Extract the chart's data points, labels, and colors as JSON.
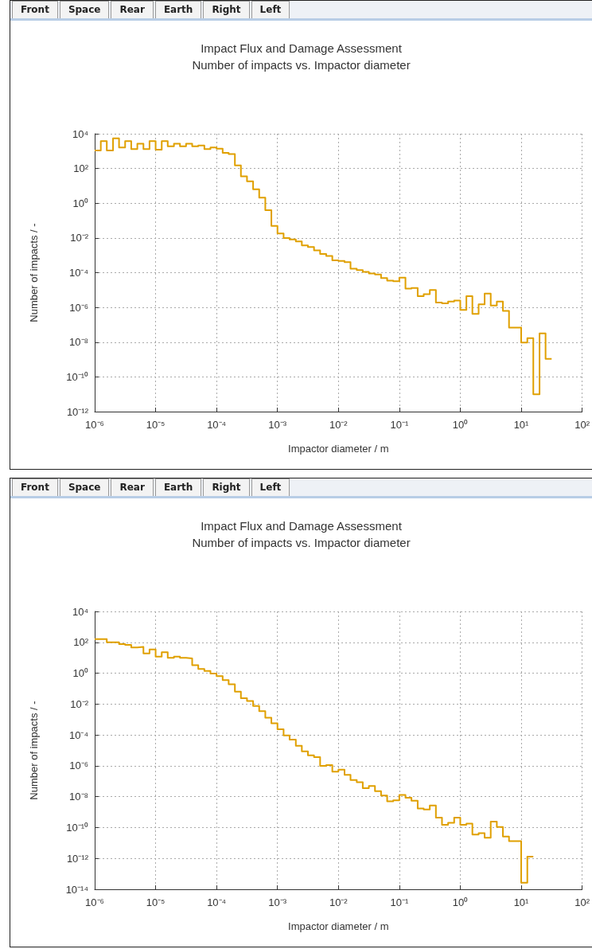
{
  "chart_data": [
    {
      "type": "histogram",
      "title": "Impact Flux and Damage Assessment",
      "subtitle": "Number of impacts vs. Impactor diameter",
      "xlabel": "Impactor diameter / m",
      "ylabel": "Number of impacts / -",
      "annotations": [
        "Front",
        "Space",
        "Rear",
        "Earth",
        "Right",
        "Left"
      ],
      "color": "#e0a000",
      "log": "xy",
      "grid": true,
      "xlim": [
        1e-06,
        100
      ],
      "ylim": [
        1e-12,
        10000.0
      ],
      "xticks": [
        {
          "value": 1e-06,
          "label": "10⁻⁶"
        },
        {
          "value": 1e-05,
          "label": "10⁻⁵"
        },
        {
          "value": 0.0001,
          "label": "10⁻⁴"
        },
        {
          "value": 0.001,
          "label": "10⁻³"
        },
        {
          "value": 0.01,
          "label": "10⁻²"
        },
        {
          "value": 0.1,
          "label": "10⁻¹"
        },
        {
          "value": 1,
          "label": "10⁰"
        },
        {
          "value": 10,
          "label": "10¹"
        },
        {
          "value": 100,
          "label": "10²"
        }
      ],
      "yticks": [
        {
          "value": 1e-12,
          "label": "10⁻¹²"
        },
        {
          "value": 1e-10,
          "label": "10⁻¹⁰"
        },
        {
          "value": 1e-08,
          "label": "10⁻⁸"
        },
        {
          "value": 1e-06,
          "label": "10⁻⁶"
        },
        {
          "value": 0.0001,
          "label": "10⁻⁴"
        },
        {
          "value": 0.01,
          "label": "10⁻²"
        },
        {
          "value": 1,
          "label": "10⁰"
        },
        {
          "value": 100,
          "label": "10²"
        },
        {
          "value": 10000.0,
          "label": "10⁴"
        }
      ],
      "bins": [
        1e-06,
        1.26e-06,
        1.58e-06,
        2e-06,
        2.51e-06,
        3.16e-06,
        3.98e-06,
        5.01e-06,
        6.31e-06,
        7.94e-06,
        1e-05,
        1.26e-05,
        1.58e-05,
        2e-05,
        2.51e-05,
        3.16e-05,
        3.98e-05,
        5.01e-05,
        6.31e-05,
        7.94e-05,
        0.0001,
        0.000126,
        0.000158,
        0.0002,
        0.000251,
        0.000316,
        0.000398,
        0.000501,
        0.000631,
        0.000794,
        0.001,
        0.00126,
        0.00158,
        0.002,
        0.00251,
        0.00316,
        0.00398,
        0.00501,
        0.00631,
        0.00794,
        0.01,
        0.0126,
        0.0158,
        0.02,
        0.0251,
        0.0316,
        0.0398,
        0.0501,
        0.0631,
        0.0794,
        0.1,
        0.126,
        0.158,
        0.2,
        0.251,
        0.316,
        0.398,
        0.501,
        0.631,
        0.794,
        1,
        1.26,
        1.58,
        2,
        2.51,
        3.16,
        3.98,
        5.01,
        6.31,
        7.94,
        10,
        12.6,
        15.8,
        20,
        25.1,
        31.6
      ],
      "values": [
        1100,
        3800,
        1100,
        5400,
        1600,
        3800,
        1300,
        2700,
        1300,
        3800,
        1200,
        3800,
        1900,
        2700,
        1900,
        2700,
        1900,
        2100,
        1300,
        1600,
        1400,
        790,
        680,
        150,
        35,
        18,
        6.3,
        2.1,
        0.4,
        0.05,
        0.018,
        0.01,
        0.0083,
        0.0063,
        0.0037,
        0.003,
        0.0019,
        0.0012,
        0.00093,
        0.00051,
        0.00047,
        0.0004,
        0.00017,
        0.00014,
        0.00011,
        8.9e-05,
        7.8e-05,
        4.9e-05,
        3.5e-05,
        3.2e-05,
        5.2e-05,
        1.2e-05,
        1.3e-05,
        4.4e-06,
        5.8e-06,
        1e-05,
        1.9e-06,
        1.7e-06,
        2.2e-06,
        2.5e-06,
        7.1e-07,
        4.4e-06,
        4.2e-07,
        1.5e-06,
        6.2e-06,
        1.3e-06,
        2.2e-06,
        6.3e-07,
        6.9e-08,
        6.9e-08,
        9.5e-09,
        1.7e-08,
        1e-11,
        3.2e-08,
        1.1e-09
      ]
    },
    {
      "type": "histogram",
      "title": "Impact Flux and Damage Assessment",
      "subtitle": "Number of impacts vs. Impactor diameter",
      "xlabel": "Impactor diameter / m",
      "ylabel": "Number of impacts / -",
      "annotations": [
        "Front",
        "Space",
        "Rear",
        "Earth",
        "Right",
        "Left"
      ],
      "color": "#e0a000",
      "log": "xy",
      "grid": true,
      "xlim": [
        1e-06,
        100
      ],
      "ylim": [
        1e-14,
        10000.0
      ],
      "xticks": [
        {
          "value": 1e-06,
          "label": "10⁻⁶"
        },
        {
          "value": 1e-05,
          "label": "10⁻⁵"
        },
        {
          "value": 0.0001,
          "label": "10⁻⁴"
        },
        {
          "value": 0.001,
          "label": "10⁻³"
        },
        {
          "value": 0.01,
          "label": "10⁻²"
        },
        {
          "value": 0.1,
          "label": "10⁻¹"
        },
        {
          "value": 1,
          "label": "10⁰"
        },
        {
          "value": 10,
          "label": "10¹"
        },
        {
          "value": 100,
          "label": "10²"
        }
      ],
      "yticks": [
        {
          "value": 1e-14,
          "label": "10⁻¹⁴"
        },
        {
          "value": 1e-12,
          "label": "10⁻¹²"
        },
        {
          "value": 1e-10,
          "label": "10⁻¹⁰"
        },
        {
          "value": 1e-08,
          "label": "10⁻⁸"
        },
        {
          "value": 1e-06,
          "label": "10⁻⁶"
        },
        {
          "value": 0.0001,
          "label": "10⁻⁴"
        },
        {
          "value": 0.01,
          "label": "10⁻²"
        },
        {
          "value": 1,
          "label": "10⁰"
        },
        {
          "value": 100,
          "label": "10²"
        },
        {
          "value": 10000.0,
          "label": "10⁴"
        }
      ],
      "bins": [
        1e-06,
        1.26e-06,
        1.58e-06,
        2e-06,
        2.51e-06,
        3.16e-06,
        3.98e-06,
        5.01e-06,
        6.31e-06,
        7.94e-06,
        1e-05,
        1.26e-05,
        1.58e-05,
        2e-05,
        2.51e-05,
        3.16e-05,
        3.98e-05,
        5.01e-05,
        6.31e-05,
        7.94e-05,
        0.0001,
        0.000126,
        0.000158,
        0.0002,
        0.000251,
        0.000316,
        0.000398,
        0.000501,
        0.000631,
        0.000794,
        0.001,
        0.00126,
        0.00158,
        0.002,
        0.00251,
        0.00316,
        0.00398,
        0.00501,
        0.00631,
        0.00794,
        0.01,
        0.0126,
        0.0158,
        0.02,
        0.0251,
        0.0316,
        0.0398,
        0.0501,
        0.0631,
        0.0794,
        0.1,
        0.126,
        0.158,
        0.2,
        0.251,
        0.316,
        0.398,
        0.501,
        0.631,
        0.794,
        1,
        1.26,
        1.58,
        2,
        2.51,
        3.16,
        3.98,
        5.01,
        6.31,
        7.94,
        10,
        12.6,
        15.8
      ],
      "values": [
        160,
        160,
        100,
        100,
        76,
        68,
        46,
        50,
        19,
        34,
        12,
        23,
        10,
        12,
        9.8,
        9.1,
        3.3,
        1.9,
        1.4,
        0.95,
        0.65,
        0.36,
        0.19,
        0.063,
        0.024,
        0.016,
        0.0076,
        0.0035,
        0.0013,
        0.00056,
        0.00023,
        9.3e-05,
        4.9e-05,
        2e-05,
        8.5e-06,
        4.8e-06,
        3.6e-06,
        1e-06,
        1.1e-06,
        4.2e-07,
        5.6e-07,
        2.6e-07,
        1.2e-07,
        8.7e-08,
        3.5e-08,
        4.9e-08,
        2.3e-08,
        1.2e-08,
        5e-09,
        5.8e-09,
        1.3e-08,
        8.5e-09,
        5.4e-09,
        1.7e-09,
        1.5e-09,
        2.7e-09,
        4.4e-10,
        1.5e-10,
        2e-10,
        4.4e-10,
        1.5e-10,
        1.8e-10,
        3.5e-11,
        4.3e-11,
        2.2e-11,
        2.4e-10,
        1.1e-10,
        2.6e-11,
        1.3e-11,
        1.3e-11,
        2.7e-14,
        1.3e-12
      ]
    }
  ]
}
